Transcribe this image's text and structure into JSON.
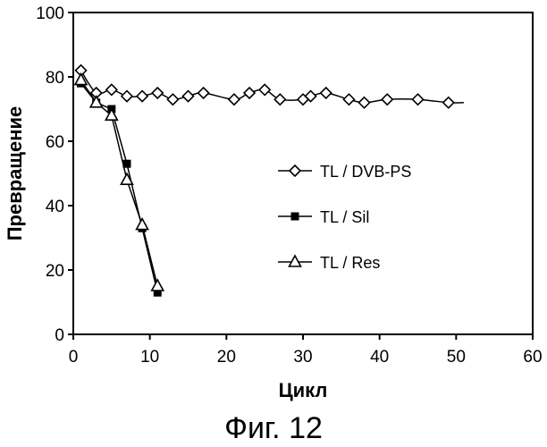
{
  "chart_data": {
    "type": "line",
    "title": "",
    "xlabel": "Цикл",
    "ylabel": "Превращение",
    "caption": "Фиг. 12",
    "xlim": [
      0,
      60
    ],
    "ylim": [
      0,
      100
    ],
    "xticks": [
      "0",
      "10",
      "20",
      "30",
      "40",
      "50",
      "60"
    ],
    "yticks": [
      "0",
      "20",
      "40",
      "60",
      "80",
      "100"
    ],
    "grid": false,
    "legend_position": "center-right",
    "series": [
      {
        "name": "TL / DVB-PS",
        "marker": "diamond-open",
        "smooth": true,
        "x": [
          1,
          3,
          5,
          7,
          9,
          11,
          13,
          15,
          17,
          21,
          23,
          25,
          27,
          30,
          31,
          33,
          36,
          38,
          41,
          45,
          49
        ],
        "y": [
          82,
          75,
          76,
          74,
          74,
          75,
          73,
          74,
          75,
          73,
          75,
          76,
          73,
          73,
          74,
          75,
          73,
          72,
          73,
          73,
          72
        ],
        "line_end": [
          51,
          72
        ]
      },
      {
        "name": "TL / Sil",
        "marker": "square-filled",
        "smooth": false,
        "x": [
          1,
          3,
          5,
          7,
          9,
          11
        ],
        "y": [
          78,
          72,
          70,
          53,
          33,
          13
        ]
      },
      {
        "name": "TL / Res",
        "marker": "triangle-open",
        "smooth": false,
        "x": [
          1,
          3,
          5,
          7,
          9,
          11
        ],
        "y": [
          79,
          72,
          68,
          48,
          34,
          15
        ]
      }
    ]
  }
}
